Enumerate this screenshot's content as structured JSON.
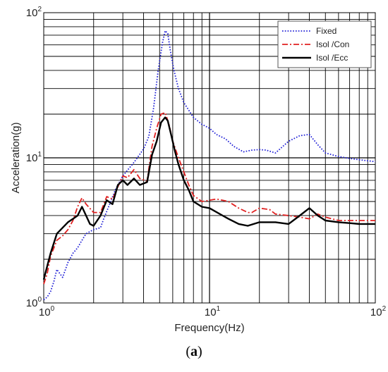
{
  "chart_data": {
    "type": "line",
    "xlabel": "Frequency(Hz)",
    "ylabel": "Acceleration(g)",
    "xscale": "log",
    "yscale": "log",
    "xlim": [
      1,
      100
    ],
    "ylim": [
      1,
      100
    ],
    "grid": true,
    "legend_position": "top-right",
    "x_ticks": [
      {
        "value": 1,
        "base": "10",
        "exp": "0"
      },
      {
        "value": 10,
        "base": "10",
        "exp": "1"
      },
      {
        "value": 100,
        "base": "10",
        "exp": "2"
      }
    ],
    "y_ticks": [
      {
        "value": 1,
        "base": "10",
        "exp": "0"
      },
      {
        "value": 10,
        "base": "10",
        "exp": "1"
      },
      {
        "value": 100,
        "base": "10",
        "exp": "2"
      }
    ],
    "series": [
      {
        "name": "Fixed",
        "color": "#1f1fd6",
        "style": "dotted",
        "points": [
          [
            1,
            1.05
          ],
          [
            1.05,
            1.1
          ],
          [
            1.1,
            1.2
          ],
          [
            1.15,
            1.4
          ],
          [
            1.2,
            1.7
          ],
          [
            1.3,
            1.5
          ],
          [
            1.4,
            1.9
          ],
          [
            1.5,
            2.2
          ],
          [
            1.6,
            2.4
          ],
          [
            1.7,
            2.7
          ],
          [
            1.8,
            3.0
          ],
          [
            2.0,
            3.2
          ],
          [
            2.2,
            3.3
          ],
          [
            2.3,
            3.8
          ],
          [
            2.5,
            4.8
          ],
          [
            2.7,
            6.0
          ],
          [
            3.0,
            7.5
          ],
          [
            3.5,
            9.3
          ],
          [
            4.0,
            11.5
          ],
          [
            4.3,
            14
          ],
          [
            4.6,
            22
          ],
          [
            4.9,
            40
          ],
          [
            5.2,
            62
          ],
          [
            5.4,
            75
          ],
          [
            5.6,
            72
          ],
          [
            5.8,
            55
          ],
          [
            6.1,
            40
          ],
          [
            6.5,
            30
          ],
          [
            7,
            24
          ],
          [
            8,
            19
          ],
          [
            9,
            17
          ],
          [
            10,
            16
          ],
          [
            11,
            14.5
          ],
          [
            12.5,
            13.5
          ],
          [
            14,
            12
          ],
          [
            16,
            11
          ],
          [
            18,
            11.3
          ],
          [
            20,
            11.4
          ],
          [
            22,
            11.3
          ],
          [
            25,
            10.8
          ],
          [
            30,
            13
          ],
          [
            35,
            14.2
          ],
          [
            40,
            14.5
          ],
          [
            45,
            12.3
          ],
          [
            50,
            10.8
          ],
          [
            60,
            10.2
          ],
          [
            70,
            9.9
          ],
          [
            80,
            9.7
          ],
          [
            100,
            9.4
          ]
        ]
      },
      {
        "name": "Isol /Con",
        "color": "#e02020",
        "style": "dashdot",
        "points": [
          [
            1,
            1.35
          ],
          [
            1.05,
            1.6
          ],
          [
            1.1,
            2.1
          ],
          [
            1.2,
            2.7
          ],
          [
            1.3,
            2.9
          ],
          [
            1.4,
            3.2
          ],
          [
            1.5,
            3.7
          ],
          [
            1.6,
            4.6
          ],
          [
            1.7,
            5.3
          ],
          [
            1.8,
            4.8
          ],
          [
            2.0,
            4.2
          ],
          [
            2.2,
            4.2
          ],
          [
            2.4,
            5.4
          ],
          [
            2.6,
            5.2
          ],
          [
            2.8,
            6.3
          ],
          [
            3.0,
            7.5
          ],
          [
            3.2,
            7.3
          ],
          [
            3.5,
            8.3
          ],
          [
            3.8,
            7.2
          ],
          [
            4.2,
            6.9
          ],
          [
            4.5,
            12
          ],
          [
            4.8,
            16
          ],
          [
            5.1,
            20
          ],
          [
            5.4,
            20.5
          ],
          [
            5.7,
            17
          ],
          [
            6.0,
            13
          ],
          [
            6.5,
            10
          ],
          [
            7.0,
            8.0
          ],
          [
            7.5,
            6.5
          ],
          [
            8,
            5.5
          ],
          [
            9,
            5.0
          ],
          [
            10,
            5.1
          ],
          [
            11,
            5.2
          ],
          [
            12,
            5.1
          ],
          [
            13,
            5.0
          ],
          [
            15,
            4.5
          ],
          [
            17,
            4.2
          ],
          [
            18,
            4.2
          ],
          [
            20,
            4.5
          ],
          [
            23,
            4.4
          ],
          [
            25,
            4.1
          ],
          [
            30,
            4.0
          ],
          [
            35,
            3.9
          ],
          [
            40,
            3.8
          ],
          [
            45,
            4.1
          ],
          [
            50,
            3.9
          ],
          [
            60,
            3.7
          ],
          [
            70,
            3.7
          ],
          [
            80,
            3.7
          ],
          [
            100,
            3.7
          ]
        ]
      },
      {
        "name": "Isol /Ecc",
        "color": "#000000",
        "style": "solid",
        "points": [
          [
            1,
            1.45
          ],
          [
            1.05,
            1.8
          ],
          [
            1.1,
            2.2
          ],
          [
            1.2,
            3.0
          ],
          [
            1.3,
            3.3
          ],
          [
            1.4,
            3.6
          ],
          [
            1.5,
            3.8
          ],
          [
            1.6,
            4.0
          ],
          [
            1.7,
            4.6
          ],
          [
            1.8,
            4.0
          ],
          [
            1.9,
            3.5
          ],
          [
            2.0,
            3.4
          ],
          [
            2.2,
            4.0
          ],
          [
            2.4,
            5.1
          ],
          [
            2.6,
            4.8
          ],
          [
            2.8,
            6.5
          ],
          [
            3.0,
            7.0
          ],
          [
            3.2,
            6.5
          ],
          [
            3.5,
            7.2
          ],
          [
            3.8,
            6.5
          ],
          [
            4.2,
            6.8
          ],
          [
            4.5,
            10.5
          ],
          [
            4.8,
            13
          ],
          [
            5.1,
            17.5
          ],
          [
            5.4,
            19
          ],
          [
            5.6,
            18
          ],
          [
            5.9,
            14
          ],
          [
            6.2,
            11
          ],
          [
            6.5,
            9
          ],
          [
            7.0,
            7.0
          ],
          [
            7.5,
            6.0
          ],
          [
            8,
            5.0
          ],
          [
            9,
            4.6
          ],
          [
            10,
            4.5
          ],
          [
            12,
            4.0
          ],
          [
            13,
            3.8
          ],
          [
            15,
            3.5
          ],
          [
            17,
            3.4
          ],
          [
            20,
            3.6
          ],
          [
            25,
            3.6
          ],
          [
            30,
            3.5
          ],
          [
            35,
            4.0
          ],
          [
            40,
            4.5
          ],
          [
            45,
            4.0
          ],
          [
            50,
            3.7
          ],
          [
            60,
            3.6
          ],
          [
            70,
            3.55
          ],
          [
            80,
            3.5
          ],
          [
            100,
            3.5
          ]
        ]
      }
    ]
  },
  "caption": {
    "open": "(",
    "letter": "a",
    "close": ")"
  }
}
